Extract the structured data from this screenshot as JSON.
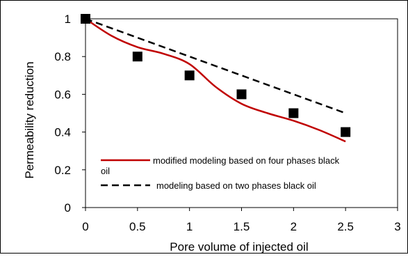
{
  "chart_data": {
    "type": "line",
    "title": "",
    "xlabel": "Pore volume of injected  oil",
    "ylabel": "Permeability reduction",
    "xlim": [
      0,
      3
    ],
    "ylim": [
      0,
      1
    ],
    "x_ticks": [
      "0",
      "0.5",
      "1",
      "1.5",
      "2",
      "2.5",
      "3"
    ],
    "y_ticks": [
      "0",
      "0.2",
      "0.4",
      "0.6",
      "0.8",
      "1"
    ],
    "grid": false,
    "legend_position": "bottom-center",
    "series": [
      {
        "name": "modified modeling based on four phases black oil",
        "style": "solid",
        "color": "#c00000",
        "x": [
          0,
          0.25,
          0.5,
          0.75,
          1.0,
          1.25,
          1.5,
          1.75,
          2.0,
          2.25,
          2.5
        ],
        "y": [
          1.0,
          0.91,
          0.85,
          0.815,
          0.76,
          0.64,
          0.55,
          0.5,
          0.46,
          0.41,
          0.35
        ]
      },
      {
        "name": "modeling based on two phases black oil",
        "style": "dashed",
        "color": "#000000",
        "x": [
          0,
          0.5,
          1.0,
          1.5,
          2.0,
          2.5
        ],
        "y": [
          1.0,
          0.9,
          0.8,
          0.7,
          0.6,
          0.5
        ]
      },
      {
        "name": "",
        "style": "markers",
        "marker": "square",
        "color": "#000000",
        "x": [
          0,
          0.5,
          1.0,
          1.5,
          2.0,
          2.5
        ],
        "y": [
          1.0,
          0.8,
          0.7,
          0.6,
          0.5,
          0.4
        ]
      }
    ]
  }
}
